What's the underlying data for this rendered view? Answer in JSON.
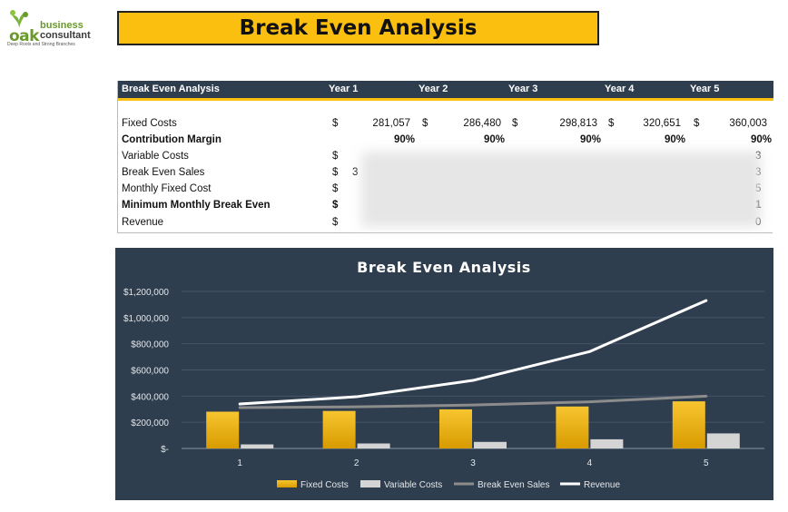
{
  "logo": {
    "brand1": "business",
    "brand2": "consultant",
    "mark": "oak",
    "tagline": "Deep Roots and Strong Branches"
  },
  "page_title": "Break Even Analysis",
  "table": {
    "header": {
      "label": "Break Even Analysis",
      "years": [
        "Year 1",
        "Year 2",
        "Year 3",
        "Year 4",
        "Year 5"
      ]
    },
    "currency": "$",
    "rows": [
      {
        "label": "Fixed Costs",
        "bold": false,
        "values": [
          "281,057",
          "286,480",
          "298,813",
          "320,651",
          "360,003"
        ]
      },
      {
        "label": "Contribution Margin",
        "bold": true,
        "values": [
          "90%",
          "90%",
          "90%",
          "90%",
          "90%"
        ]
      },
      {
        "label": "Variable Costs",
        "bold": false,
        "partial_first": "",
        "partial_last": "3"
      },
      {
        "label": "Break Even Sales",
        "bold": false,
        "partial_first": "3",
        "partial_last": "3"
      },
      {
        "label": "Monthly Fixed Cost",
        "bold": false,
        "partial_first": "",
        "partial_last": "5"
      },
      {
        "label": "Minimum Monthly Break Even",
        "bold": true,
        "partial_first": "",
        "partial_last": "1"
      },
      {
        "label": "Revenue",
        "bold": false,
        "partial_first": "",
        "partial_last": "0"
      }
    ]
  },
  "chart_data": {
    "type": "bar",
    "title": "Break Even Analysis",
    "categories": [
      "1",
      "2",
      "3",
      "4",
      "5"
    ],
    "ylim": [
      0,
      1200000
    ],
    "yticks": [
      0,
      200000,
      400000,
      600000,
      800000,
      1000000,
      1200000
    ],
    "ytick_labels": [
      "$-",
      "$200,000",
      "$400,000",
      "$600,000",
      "$800,000",
      "$1,000,000",
      "$1,200,000"
    ],
    "grid": true,
    "legend_position": "bottom",
    "series": [
      {
        "name": "Fixed Costs",
        "kind": "bar",
        "color": "#f5b800",
        "values": [
          281057,
          286480,
          298813,
          320651,
          360003
        ]
      },
      {
        "name": "Variable Costs",
        "kind": "bar",
        "color": "#d4d4d4",
        "values": [
          31000,
          38000,
          50000,
          70000,
          115000
        ]
      },
      {
        "name": "Break Even Sales",
        "kind": "line",
        "color": "#8c8c8c",
        "values": [
          312000,
          318000,
          332000,
          356000,
          400000
        ]
      },
      {
        "name": "Revenue",
        "kind": "line",
        "color": "#ffffff",
        "values": [
          340000,
          395000,
          520000,
          740000,
          1130000
        ]
      }
    ]
  }
}
